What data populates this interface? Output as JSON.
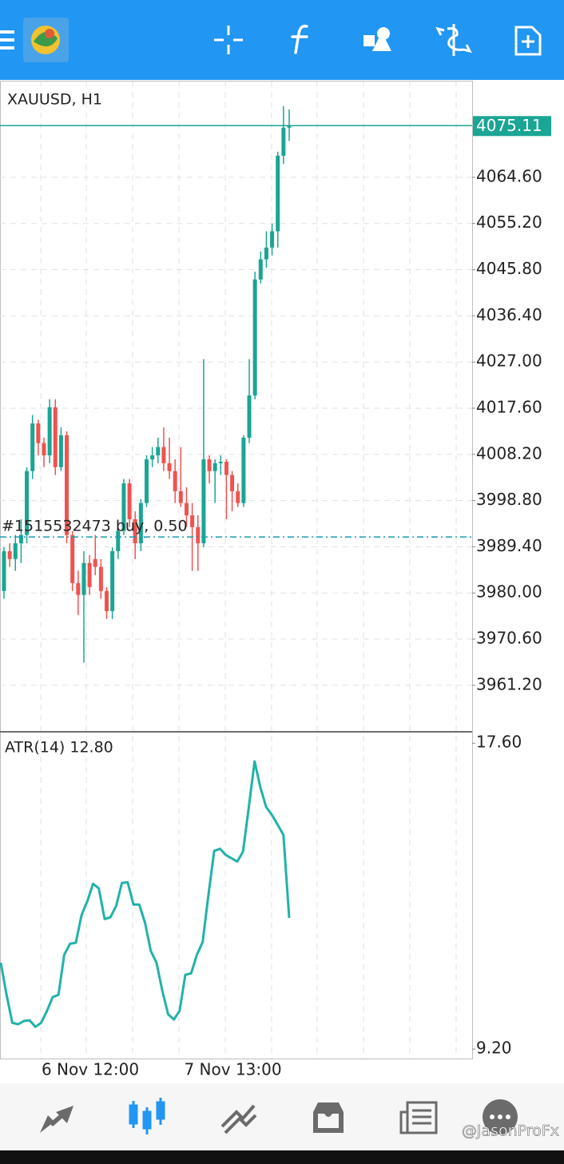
{
  "chart_data": [
    {
      "type": "candlestick",
      "title": "XAUUSD, H1",
      "categories": [
        null,
        null,
        null,
        null,
        null,
        null,
        null,
        "6 Nov 12:00",
        null,
        null,
        null,
        null,
        null,
        null,
        null,
        null,
        null,
        null,
        null,
        null,
        null,
        null,
        null,
        null,
        null,
        null,
        null,
        null,
        null,
        null,
        null,
        null,
        "7 Nov 13:00",
        null,
        null,
        null,
        null,
        null,
        null,
        null,
        null,
        null,
        null,
        null,
        null,
        null,
        null,
        null,
        null,
        null,
        null
      ],
      "open": [
        3980.4,
        3988.5,
        3986.9,
        3990.1,
        3991.8,
        4004.8,
        4014.5,
        4010.5,
        4008.0,
        4017.8,
        4005.6,
        4012.1,
        3991.8,
        3982.0,
        3979.6,
        3986.1,
        3986.9,
        3985.3,
        3980.4,
        3976.3,
        3988.5,
        3992.6,
        4002.3,
        3995.0,
        3990.1,
        3998.3,
        4007.2,
        4008.0,
        4009.7,
        4006.4,
        4004.8,
        4000.7,
        3998.3,
        3995.8,
        3993.4,
        3990.1,
        4007.2,
        4004.8,
        4006.4,
        4006.7,
        4004.0,
        4000.7,
        3998.3,
        4011.6,
        4020.2,
        4043.8,
        4047.9,
        4050.3,
        4053.6,
        4069.0,
        4074.7
      ],
      "high": [
        3989.3,
        3990.1,
        3991.8,
        3995.0,
        4005.6,
        4016.2,
        4015.3,
        4011.6,
        4019.4,
        4019.4,
        4013.7,
        4012.9,
        3992.6,
        3984.5,
        3988.5,
        3987.7,
        3991.8,
        3986.9,
        3981.2,
        3989.3,
        3993.4,
        4003.2,
        4003.2,
        3996.6,
        3999.1,
        4008.0,
        4009.7,
        4011.6,
        4013.7,
        4011.6,
        4007.2,
        4009.7,
        4001.5,
        3998.3,
        3995.8,
        4027.6,
        4008.0,
        4007.2,
        4008.0,
        4007.2,
        4004.8,
        4002.3,
        4012.1,
        4027.6,
        4045.4,
        4049.5,
        4053.6,
        4055.2,
        4069.8,
        4079.1,
        4078.4
      ],
      "low": [
        3978.8,
        3985.3,
        3984.5,
        3986.1,
        3990.1,
        4003.2,
        4008.0,
        4005.6,
        4006.4,
        4004.0,
        4004.8,
        3990.1,
        3980.4,
        3975.5,
        3965.8,
        3979.6,
        3983.6,
        3978.8,
        3974.7,
        3974.7,
        3986.9,
        3991.8,
        3993.4,
        3986.9,
        3988.5,
        3997.5,
        4005.6,
        4006.4,
        4004.8,
        4003.2,
        3998.3,
        3997.5,
        3993.4,
        3984.5,
        3984.5,
        3989.3,
        4002.3,
        3998.3,
        4004.0,
        3995.0,
        3996.6,
        3997.5,
        3997.5,
        4010.5,
        4019.4,
        4043.0,
        4046.2,
        4048.7,
        4050.3,
        4067.3,
        4072.0
      ],
      "close": [
        3988.5,
        3986.9,
        3990.1,
        3991.8,
        4004.8,
        4014.5,
        4010.5,
        4008.0,
        4017.8,
        4005.6,
        4012.1,
        3991.8,
        3982.0,
        3979.6,
        3986.1,
        3981.2,
        3985.3,
        3980.4,
        3976.3,
        3988.5,
        3992.6,
        4002.3,
        3995.0,
        3990.1,
        3998.3,
        4007.2,
        4008.0,
        4009.7,
        4006.4,
        4004.8,
        4000.7,
        3998.3,
        3995.8,
        3993.4,
        3990.1,
        4007.2,
        4004.8,
        4006.4,
        4006.7,
        4004.0,
        4000.7,
        3998.3,
        4011.6,
        4020.2,
        4043.8,
        4047.9,
        4050.3,
        4053.6,
        4069.0,
        4074.7,
        4075.11
      ],
      "up_color": "#1aa594",
      "down_color": "#ef5350",
      "ylim": [
        3951.9,
        4084.1
      ],
      "yticks": [
        {
          "value": 4064.6,
          "label": "4064.60"
        },
        {
          "value": 4055.2,
          "label": "4055.20"
        },
        {
          "value": 4045.8,
          "label": "4045.80"
        },
        {
          "value": 4036.4,
          "label": "4036.40"
        },
        {
          "value": 4027,
          "label": "4027.00"
        },
        {
          "value": 4017.6,
          "label": "4017.60"
        },
        {
          "value": 4008.2,
          "label": "4008.20"
        },
        {
          "value": 3998.8,
          "label": "3998.80"
        },
        {
          "value": 3989.4,
          "label": "3989.40"
        },
        {
          "value": 3980,
          "label": "3980.00"
        },
        {
          "value": 3970.6,
          "label": "3970.60"
        },
        {
          "value": 3961.2,
          "label": "3961.20"
        }
      ],
      "grid": true,
      "order_line": {
        "label": "#1515532473 buy, 0.50",
        "value": 3991.4,
        "color": "#1a9bb0"
      }
    },
    {
      "type": "line",
      "title": "ATR(14) 12.80",
      "values": [
        11.57,
        10.69,
        9.92,
        9.88,
        9.97,
        9.99,
        9.81,
        9.92,
        10.25,
        10.63,
        10.69,
        11.79,
        12.09,
        12.12,
        12.88,
        13.26,
        13.74,
        13.61,
        12.77,
        12.82,
        13.13,
        13.76,
        13.78,
        13.17,
        13.17,
        12.67,
        11.9,
        11.57,
        10.8,
        10.16,
        10.01,
        10.25,
        11.24,
        11.28,
        11.79,
        12.14,
        13.43,
        14.64,
        14.7,
        14.53,
        14.44,
        14.35,
        14.62,
        15.85,
        17.1,
        16.39,
        15.85,
        15.63,
        15.36,
        15.08,
        12.8
      ],
      "color": "#20b2aa",
      "ylim": [
        8.94,
        17.89
      ],
      "yticks": [
        {
          "value": 17.6,
          "label": "17.60"
        },
        {
          "value": 9.2,
          "label": "9.20"
        }
      ]
    }
  ],
  "watermark": "@JasonProFx"
}
